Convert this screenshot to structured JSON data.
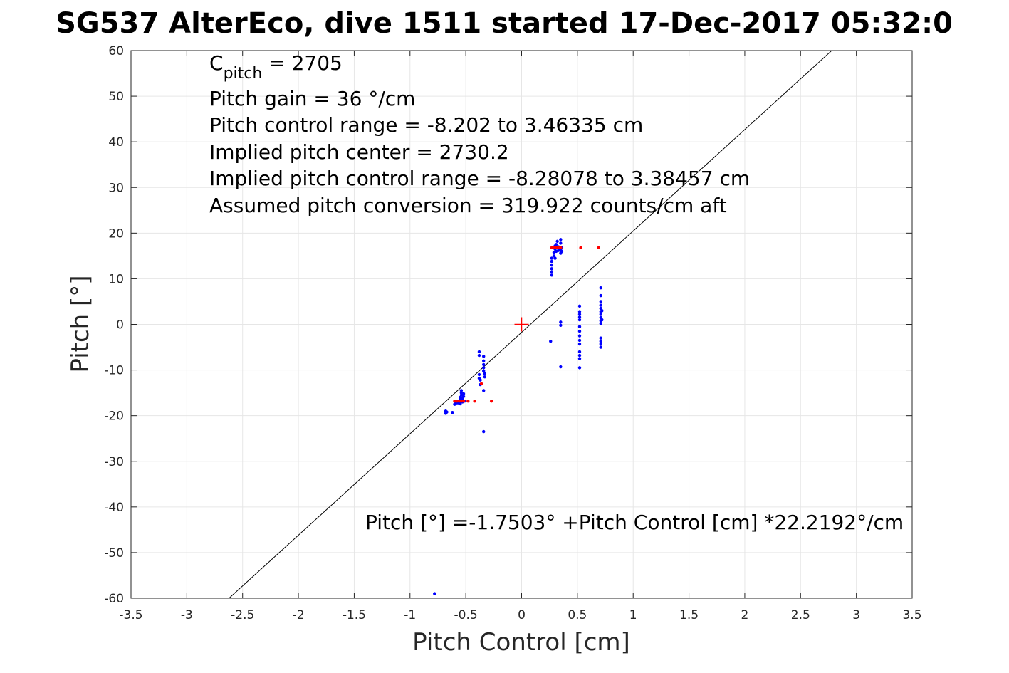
{
  "chart_data": {
    "type": "scatter",
    "title": "SG537 AlterEco, dive 1511 started 17-Dec-2017 05:32:0",
    "xlabel": "Pitch Control [cm]",
    "ylabel": "Pitch [°]",
    "xlim": [
      -3.5,
      3.5
    ],
    "ylim": [
      -60,
      60
    ],
    "xticks": [
      -3.5,
      -3,
      -2.5,
      -2,
      -1.5,
      -1,
      -0.5,
      0,
      0.5,
      1,
      1.5,
      2,
      2.5,
      3,
      3.5
    ],
    "xtick_labels": [
      "-3.5",
      "-3",
      "-2.5",
      "-2",
      "-1.5",
      "-1",
      "-0.5",
      "0",
      "0.5",
      "1",
      "1.5",
      "2",
      "2.5",
      "3",
      "3.5"
    ],
    "yticks": [
      -60,
      -50,
      -40,
      -30,
      -20,
      -10,
      0,
      10,
      20,
      30,
      40,
      50,
      60
    ],
    "ytick_labels": [
      "-60",
      "-50",
      "-40",
      "-30",
      "-20",
      "-10",
      "0",
      "10",
      "20",
      "30",
      "40",
      "50",
      "60"
    ],
    "grid": true,
    "colors": {
      "blue": "#0000ff",
      "red": "#ff0000",
      "line": "#000000",
      "grid": "#e6e6e6"
    },
    "fit_line": {
      "intercept": -1.7503,
      "slope": 22.2192
    },
    "center_marker": {
      "x": 0,
      "y": 0
    },
    "annotations": {
      "cpitch_base": "C",
      "cpitch_sub": "pitch",
      "cpitch_value": " = 2705",
      "line2": "Pitch gain = 36 °/cm",
      "line3": "Pitch control range = -8.202 to 3.46335 cm",
      "line4": "Implied pitch center = 2730.2",
      "line5": "Implied pitch control range = -8.28078 to 3.38457 cm",
      "line6": "Assumed pitch conversion = 319.922 counts/cm aft",
      "fit_text": "Pitch [°] =-1.7503° +Pitch Control [cm] *22.2192°/cm"
    },
    "series": [
      {
        "color": "blue",
        "points": [
          [
            -0.68,
            -19.0
          ],
          [
            -0.68,
            -19.5
          ],
          [
            -0.67,
            -19.2
          ],
          [
            -0.62,
            -19.3
          ],
          [
            -0.6,
            -17.5
          ],
          [
            -0.59,
            -17.3
          ],
          [
            -0.58,
            -17.0
          ],
          [
            -0.57,
            -17.2
          ],
          [
            -0.56,
            -16.8
          ],
          [
            -0.55,
            -17.4
          ],
          [
            -0.55,
            -16.5
          ],
          [
            -0.55,
            -16.0
          ],
          [
            -0.54,
            -15.5
          ],
          [
            -0.54,
            -15.0
          ],
          [
            -0.54,
            -14.5
          ],
          [
            -0.53,
            -17.0
          ],
          [
            -0.53,
            -16.2
          ],
          [
            -0.52,
            -15.8
          ],
          [
            -0.52,
            -15.2
          ],
          [
            -0.51,
            -16.8
          ],
          [
            -0.38,
            -6.0
          ],
          [
            -0.38,
            -6.8
          ],
          [
            -0.38,
            -11.0
          ],
          [
            -0.38,
            -11.8
          ],
          [
            -0.37,
            -12.2
          ],
          [
            -0.37,
            -13.2
          ],
          [
            -0.34,
            -7.0
          ],
          [
            -0.34,
            -8.0
          ],
          [
            -0.34,
            -8.8
          ],
          [
            -0.34,
            -9.5
          ],
          [
            -0.34,
            -10.2
          ],
          [
            -0.33,
            -10.8
          ],
          [
            -0.33,
            -11.5
          ],
          [
            -0.34,
            -14.5
          ],
          [
            -0.34,
            -23.5
          ],
          [
            -0.78,
            -59.0
          ],
          [
            0.27,
            10.8
          ],
          [
            0.27,
            11.5
          ],
          [
            0.27,
            12.2
          ],
          [
            0.27,
            13.0
          ],
          [
            0.27,
            13.8
          ],
          [
            0.27,
            14.5
          ],
          [
            0.29,
            15.0
          ],
          [
            0.29,
            15.8
          ],
          [
            0.3,
            16.5
          ],
          [
            0.3,
            17.2
          ],
          [
            0.3,
            14.5
          ],
          [
            0.31,
            16.0
          ],
          [
            0.31,
            17.5
          ],
          [
            0.32,
            18.2
          ],
          [
            0.32,
            16.8
          ],
          [
            0.33,
            16.2
          ],
          [
            0.33,
            17.0
          ],
          [
            0.34,
            16.5
          ],
          [
            0.35,
            15.6
          ],
          [
            0.35,
            16.3
          ],
          [
            0.35,
            17.8
          ],
          [
            0.35,
            18.6
          ],
          [
            0.36,
            16.8
          ],
          [
            0.36,
            16.0
          ],
          [
            0.26,
            -3.7
          ],
          [
            0.35,
            0.5
          ],
          [
            0.35,
            -0.2
          ],
          [
            0.35,
            -9.3
          ],
          [
            0.52,
            4.0
          ],
          [
            0.52,
            2.8
          ],
          [
            0.52,
            2.2
          ],
          [
            0.52,
            1.6
          ],
          [
            0.52,
            1.0
          ],
          [
            0.52,
            -0.5
          ],
          [
            0.52,
            -1.5
          ],
          [
            0.52,
            -2.5
          ],
          [
            0.52,
            -3.5
          ],
          [
            0.52,
            -4.3
          ],
          [
            0.52,
            -6.0
          ],
          [
            0.52,
            -6.8
          ],
          [
            0.52,
            -7.5
          ],
          [
            0.52,
            -9.5
          ],
          [
            0.71,
            8.0
          ],
          [
            0.71,
            6.3
          ],
          [
            0.71,
            5.0
          ],
          [
            0.71,
            4.2
          ],
          [
            0.71,
            3.5
          ],
          [
            0.71,
            2.8
          ],
          [
            0.71,
            2.2
          ],
          [
            0.71,
            1.5
          ],
          [
            0.71,
            0.8
          ],
          [
            0.71,
            0.2
          ],
          [
            0.71,
            -3.0
          ],
          [
            0.71,
            -3.7
          ],
          [
            0.71,
            -4.3
          ],
          [
            0.71,
            -5.0
          ],
          [
            0.72,
            3.0
          ],
          [
            0.72,
            1.0
          ]
        ]
      },
      {
        "color": "red",
        "points": [
          [
            -0.6,
            -16.8
          ],
          [
            -0.58,
            -16.8
          ],
          [
            -0.56,
            -16.8
          ],
          [
            -0.54,
            -16.8
          ],
          [
            -0.52,
            -16.8
          ],
          [
            -0.48,
            -16.8
          ],
          [
            -0.42,
            -16.8
          ],
          [
            -0.36,
            -13.0
          ],
          [
            -0.27,
            -16.8
          ],
          [
            0.27,
            16.8
          ],
          [
            0.29,
            16.8
          ],
          [
            0.31,
            16.8
          ],
          [
            0.33,
            16.8
          ],
          [
            0.35,
            16.8
          ],
          [
            0.53,
            16.8
          ],
          [
            0.69,
            16.8
          ]
        ]
      }
    ]
  }
}
